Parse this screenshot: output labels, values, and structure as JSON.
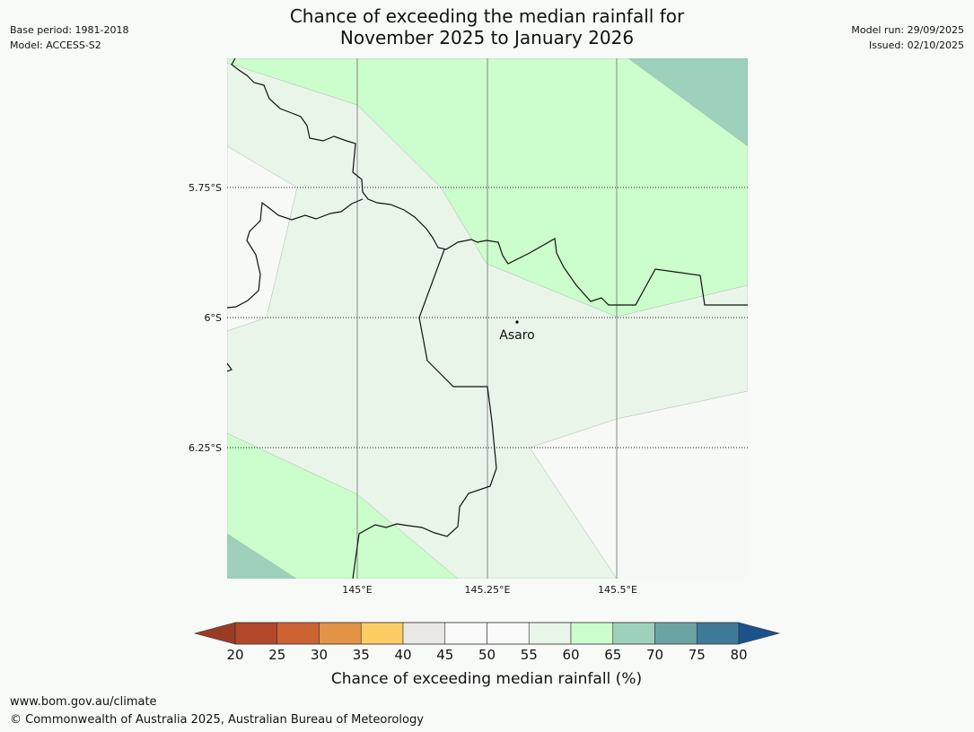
{
  "header": {
    "title_line1": "Chance of exceeding the median rainfall for",
    "title_line2": "November 2025 to January 2026",
    "base_period": "Base period: 1981-2018",
    "model": "Model: ACCESS-S2",
    "model_run": "Model run: 29/09/2025",
    "issued": "Issued: 02/10/2025"
  },
  "map": {
    "lat_labels": [
      "5.75°S",
      "6°S",
      "6.25°S"
    ],
    "lon_labels": [
      "145°E",
      "145.25°E",
      "145.5°E"
    ],
    "place": "Asaro",
    "colors": {
      "c45_55": "#f6f9f6",
      "c55_60": "#eaf5ea",
      "c60_65": "#ccfdcc",
      "c65_70": "#9dd1bb"
    }
  },
  "legend": {
    "ticks": [
      "20",
      "25",
      "30",
      "35",
      "40",
      "45",
      "50",
      "55",
      "60",
      "65",
      "70",
      "75",
      "80"
    ],
    "colors": [
      "#b2472a",
      "#cd6232",
      "#e39446",
      "#fdcd65",
      "#eae8e4",
      "#fafafa",
      "#fafafa",
      "#eaf5ea",
      "#ccfdcc",
      "#9dd1bb",
      "#6ca4a4",
      "#3f7a9b"
    ],
    "under_color": "#9b3a25",
    "over_color": "#1c528c",
    "label": "Chance of exceeding median rainfall (%)"
  },
  "footer": {
    "url": "www.bom.gov.au/climate",
    "copyright": "© Commonwealth of Australia 2025, Australian Bureau of Meteorology"
  }
}
